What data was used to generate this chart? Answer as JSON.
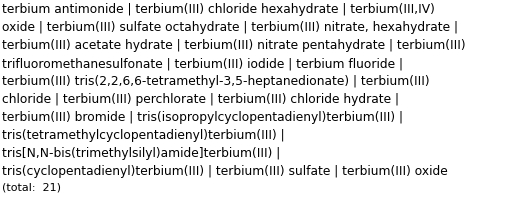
{
  "lines": [
    "terbium antimonide │ terbium(III) chloride hexahydrate │ terbium(III,IV)",
    "oxide │ terbium(III) sulfate octahydrate │ terbium(III) nitrate, hexahydrate │",
    "terbium(III) acetate hydrate │ terbium(III) nitrate pentahydrate │ terbium(III)",
    "trifluoromethanesulfonate │ terbium(III) iodide │ terbium fluoride │",
    "terbium(III) tris(2,2,6,6-tetramethyl-3,5-heptanedionate) │ terbium(III)",
    "chloride │ terbium(III) perchlorate │ terbium(III) chloride hydrate │",
    "terbium(III) bromide │ tris(isopropylcyclopentadienyl)terbium(III) │",
    "tris(tetramethylcyclopentadienyl)terbium(III) │",
    "tris[N,N-bis(trimethylsilyl)amide]terbium(III) │",
    "tris(cyclopentadienyl)terbium(III) │ terbium(III) sulfate │ terbium(III) oxide",
    "(total:  21)"
  ],
  "font_size": 8.8,
  "total_font_size": 8.0,
  "text_color": "#000000",
  "bg_color": "#ffffff",
  "fig_width": 5.31,
  "fig_height": 2.2,
  "font_family": "DejaVu Sans"
}
